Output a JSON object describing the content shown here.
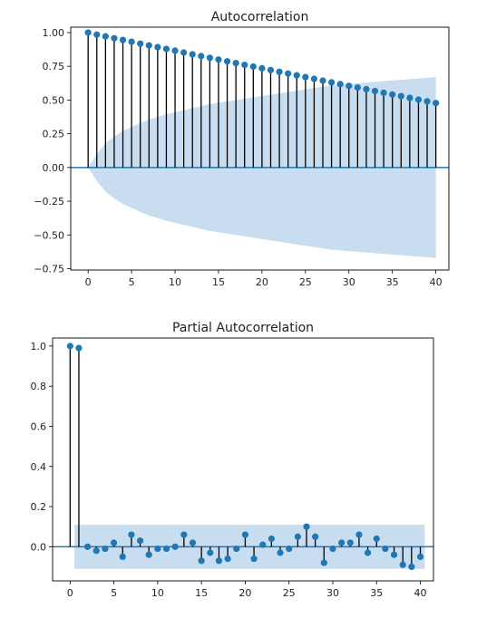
{
  "chart_data": [
    {
      "type": "stem",
      "title": "Autocorrelation",
      "xlabel": "",
      "ylabel": "",
      "xlim": [
        -2,
        41.5
      ],
      "ylim": [
        -0.76,
        1.04
      ],
      "xticks": [
        "0",
        "5",
        "10",
        "15",
        "20",
        "25",
        "30",
        "35",
        "40"
      ],
      "yticks": [
        "1.00",
        "0.75",
        "0.50",
        "0.25",
        "0.00",
        "−0.25",
        "−0.50",
        "−0.75"
      ],
      "x": [
        0,
        1,
        2,
        3,
        4,
        5,
        6,
        7,
        8,
        9,
        10,
        11,
        12,
        13,
        14,
        15,
        16,
        17,
        18,
        19,
        20,
        21,
        22,
        23,
        24,
        25,
        26,
        27,
        28,
        29,
        30,
        31,
        32,
        33,
        34,
        35,
        36,
        37,
        38,
        39,
        40
      ],
      "values": [
        1.0,
        0.985,
        0.972,
        0.958,
        0.945,
        0.932,
        0.918,
        0.905,
        0.892,
        0.879,
        0.866,
        0.852,
        0.839,
        0.826,
        0.813,
        0.8,
        0.787,
        0.774,
        0.761,
        0.748,
        0.735,
        0.722,
        0.709,
        0.696,
        0.683,
        0.67,
        0.657,
        0.644,
        0.631,
        0.618,
        0.605,
        0.593,
        0.58,
        0.567,
        0.554,
        0.541,
        0.529,
        0.516,
        0.503,
        0.49,
        0.478
      ],
      "confint_upper": [
        0.0,
        0.1,
        0.18,
        0.23,
        0.27,
        0.3,
        0.33,
        0.355,
        0.375,
        0.395,
        0.41,
        0.425,
        0.44,
        0.455,
        0.47,
        0.48,
        0.49,
        0.5,
        0.51,
        0.52,
        0.53,
        0.54,
        0.55,
        0.56,
        0.57,
        0.58,
        0.59,
        0.6,
        0.61,
        0.615,
        0.62,
        0.625,
        0.63,
        0.635,
        0.64,
        0.645,
        0.65,
        0.655,
        0.66,
        0.665,
        0.67
      ],
      "colors": {
        "marker": "#1f77b4",
        "stem": "#000000",
        "band": "#c6dbef",
        "baseline": "#1f77b4"
      }
    },
    {
      "type": "stem",
      "title": "Partial Autocorrelation",
      "xlabel": "",
      "ylabel": "",
      "xlim": [
        -2,
        41.5
      ],
      "ylim": [
        -0.17,
        1.04
      ],
      "xticks": [
        "0",
        "5",
        "10",
        "15",
        "20",
        "25",
        "30",
        "35",
        "40"
      ],
      "yticks": [
        "1.0",
        "0.8",
        "0.6",
        "0.4",
        "0.2",
        "0.0"
      ],
      "x": [
        0,
        1,
        2,
        3,
        4,
        5,
        6,
        7,
        8,
        9,
        10,
        11,
        12,
        13,
        14,
        15,
        16,
        17,
        18,
        19,
        20,
        21,
        22,
        23,
        24,
        25,
        26,
        27,
        28,
        29,
        30,
        31,
        32,
        33,
        34,
        35,
        36,
        37,
        38,
        39,
        40
      ],
      "values": [
        1.0,
        0.99,
        0.0,
        -0.02,
        -0.01,
        0.02,
        -0.05,
        0.06,
        0.03,
        -0.04,
        -0.01,
        -0.01,
        0.0,
        0.06,
        0.02,
        -0.07,
        -0.03,
        -0.07,
        -0.06,
        -0.01,
        0.06,
        -0.06,
        0.01,
        0.04,
        -0.03,
        -0.01,
        0.05,
        0.1,
        0.05,
        -0.08,
        -0.01,
        0.02,
        0.02,
        0.06,
        -0.03,
        0.04,
        -0.01,
        -0.04,
        -0.09,
        -0.1,
        -0.05
      ],
      "confint": 0.11,
      "colors": {
        "marker": "#1f77b4",
        "stem": "#000000",
        "band": "#c6dbef",
        "baseline": "#1f77b4"
      }
    }
  ]
}
